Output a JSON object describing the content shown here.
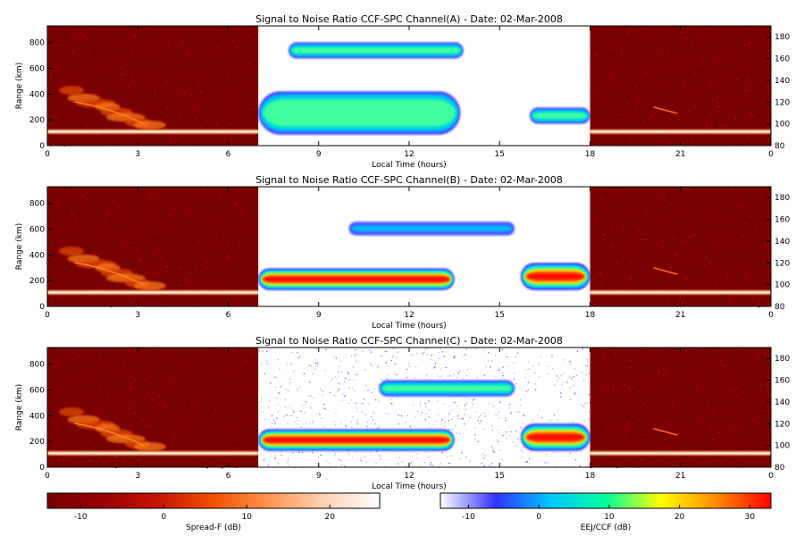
{
  "chart_data": [
    {
      "type": "heatmap",
      "title": "Signal to Noise Ratio CCF-SPC Channel(A) - Date: 02-Mar-2008",
      "xlabel": "Local Time (hours)",
      "ylabel": "Range (km)",
      "xticks": [
        "0",
        "3",
        "6",
        "9",
        "12",
        "15",
        "18",
        "21",
        "0"
      ],
      "xlim": [
        0,
        24
      ],
      "yticks_left": [
        0,
        200,
        400,
        600,
        800
      ],
      "ylim_left": [
        0,
        930
      ],
      "yticks_right": [
        80,
        100,
        120,
        140,
        160,
        180
      ],
      "ylim_right": [
        80,
        190
      ],
      "segments": [
        {
          "x_range": [
            0,
            7
          ],
          "colormap": "spread-f"
        },
        {
          "x_range": [
            7,
            18
          ],
          "colormap": "eej-ccf"
        },
        {
          "x_range": [
            18,
            24
          ],
          "colormap": "spread-f"
        }
      ],
      "eej_structures": [
        {
          "x_range": [
            7.0,
            13.7
          ],
          "y_range_km": [
            90,
            130
          ],
          "peak_db": 8
        },
        {
          "x_range": [
            8.0,
            13.8
          ],
          "y_range_km": [
            160,
            175
          ],
          "peak_db": 6
        },
        {
          "x_range": [
            16.0,
            18.0
          ],
          "y_range_km": [
            100,
            115
          ],
          "peak_db": 5
        }
      ]
    },
    {
      "type": "heatmap",
      "title": "Signal to Noise Ratio CCF-SPC Channel(B) - Date: 02-Mar-2008",
      "xlabel": "Local Time (hours)",
      "ylabel": "Range (km)",
      "xticks": [
        "0",
        "3",
        "6",
        "9",
        "12",
        "15",
        "18",
        "21",
        "0"
      ],
      "xlim": [
        0,
        24
      ],
      "yticks_left": [
        0,
        200,
        400,
        600,
        800
      ],
      "ylim_left": [
        0,
        930
      ],
      "yticks_right": [
        80,
        100,
        120,
        140,
        160,
        180
      ],
      "ylim_right": [
        80,
        190
      ],
      "segments": [
        {
          "x_range": [
            0,
            7
          ],
          "colormap": "spread-f"
        },
        {
          "x_range": [
            7,
            18
          ],
          "colormap": "eej-ccf"
        },
        {
          "x_range": [
            18,
            24
          ],
          "colormap": "spread-f"
        }
      ],
      "eej_structures": [
        {
          "x_range": [
            7.0,
            13.5
          ],
          "y_range_km": [
            95,
            115
          ],
          "peak_db": 30
        },
        {
          "x_range": [
            15.7,
            18.0
          ],
          "y_range_km": [
            95,
            120
          ],
          "peak_db": 30
        },
        {
          "x_range": [
            10.0,
            15.5
          ],
          "y_range_km": [
            145,
            158
          ],
          "peak_db": 0
        }
      ]
    },
    {
      "type": "heatmap",
      "title": "Signal to Noise Ratio CCF-SPC Channel(C) - Date: 02-Mar-2008",
      "xlabel": "Local Time (hours)",
      "ylabel": "Range (km)",
      "xticks": [
        "0",
        "3",
        "6",
        "9",
        "12",
        "15",
        "18",
        "21",
        "0"
      ],
      "xlim": [
        0,
        24
      ],
      "yticks_left": [
        0,
        200,
        400,
        600,
        800
      ],
      "ylim_left": [
        0,
        930
      ],
      "yticks_right": [
        80,
        100,
        120,
        140,
        160,
        180
      ],
      "ylim_right": [
        80,
        190
      ],
      "segments": [
        {
          "x_range": [
            0,
            7
          ],
          "colormap": "spread-f"
        },
        {
          "x_range": [
            7,
            18
          ],
          "colormap": "eej-ccf"
        },
        {
          "x_range": [
            18,
            24
          ],
          "colormap": "spread-f"
        }
      ],
      "eej_structures": [
        {
          "x_range": [
            7.0,
            13.5
          ],
          "y_range_km": [
            95,
            115
          ],
          "peak_db": 30
        },
        {
          "x_range": [
            15.7,
            18.0
          ],
          "y_range_km": [
            95,
            120
          ],
          "peak_db": 30
        },
        {
          "x_range": [
            11.0,
            15.5
          ],
          "y_range_km": [
            145,
            160
          ],
          "peak_db": 5
        }
      ]
    }
  ],
  "colorbars": [
    {
      "label": "Spread-F (dB)",
      "ticks": [
        "-10",
        "0",
        "10",
        "20"
      ],
      "range": [
        -14,
        26
      ],
      "stops": [
        "#780000",
        "#960000",
        "#c81400",
        "#f05000",
        "#ff9650",
        "#ffd2b4",
        "#ffffff"
      ]
    },
    {
      "label": "EEJ/CCF (dB)",
      "ticks": [
        "-10",
        "0",
        "10",
        "20",
        "30"
      ],
      "range": [
        -14,
        33
      ],
      "stops": [
        "#ffffff",
        "#3232ff",
        "#00c8ff",
        "#00ff9a",
        "#ffff00",
        "#ff8c00",
        "#ff0000"
      ]
    }
  ]
}
